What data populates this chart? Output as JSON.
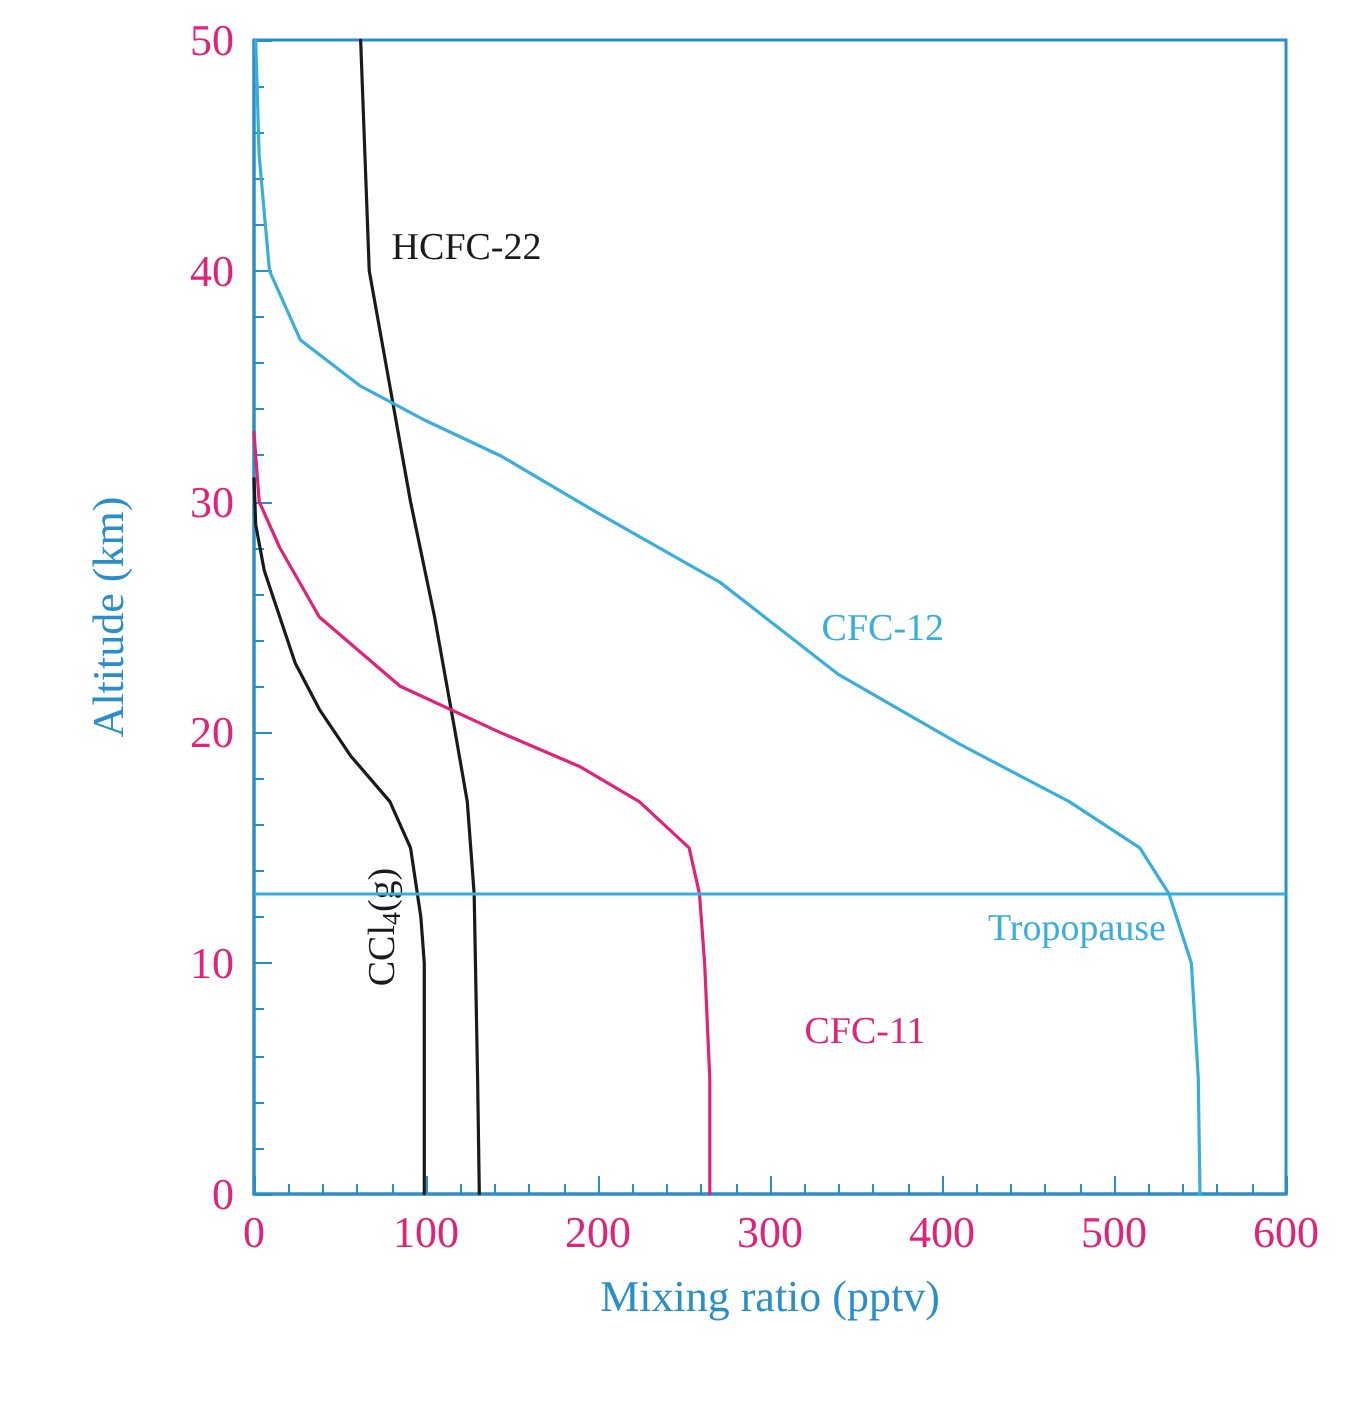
{
  "chart_data": {
    "type": "line",
    "xlabel": "Mixing ratio (pptv)",
    "ylabel": "Altitude (km)",
    "xlim": [
      0,
      600
    ],
    "xticks": [
      0,
      100,
      200,
      300,
      400,
      500,
      600
    ],
    "ylim": [
      0,
      50
    ],
    "yticks": [
      0,
      10,
      20,
      30,
      40,
      50
    ],
    "grid": false,
    "legend": false,
    "marker": "none",
    "line_style": "solid",
    "series": [
      {
        "name": "HCFC-22",
        "color": "#1a1a1a",
        "x": [
          131,
          130,
          128,
          124,
          117,
          105,
          91,
          79,
          67,
          62
        ],
        "values": [
          0,
          5,
          13,
          17,
          20,
          25,
          30,
          35,
          40,
          50
        ]
      },
      {
        "name": "CFC-12",
        "color": "#3aaedb",
        "x": [
          550,
          549,
          545,
          532,
          515,
          474,
          410,
          340,
          271,
          200,
          143,
          100,
          62,
          27,
          9,
          3,
          1
        ],
        "values": [
          0,
          5,
          10,
          13,
          15,
          17,
          19.5,
          22.5,
          26.5,
          29.5,
          32,
          33.5,
          35,
          37,
          40,
          45,
          50
        ]
      },
      {
        "name": "CFC-11",
        "color": "#e0237a",
        "x": [
          265,
          265,
          262,
          259,
          253,
          224,
          190,
          143,
          85,
          38,
          15,
          3,
          0
        ],
        "values": [
          0,
          5,
          10,
          13,
          15,
          17,
          18.5,
          20,
          22,
          25,
          28,
          30,
          33
        ]
      },
      {
        "name": "CCl$_{4}$(g)",
        "color": "#1a1a1a",
        "x": [
          99,
          99,
          97,
          91,
          79,
          56,
          38,
          24,
          15,
          6,
          1,
          0
        ],
        "values": [
          0,
          10,
          12,
          15,
          17,
          19,
          21,
          23,
          25,
          27,
          29,
          31
        ]
      }
    ],
    "ref_lines": [
      {
        "axis": "y",
        "value": 13,
        "label": "Tropopause",
        "color": "#3aaedb",
        "line_style": "solid"
      }
    ]
  }
}
